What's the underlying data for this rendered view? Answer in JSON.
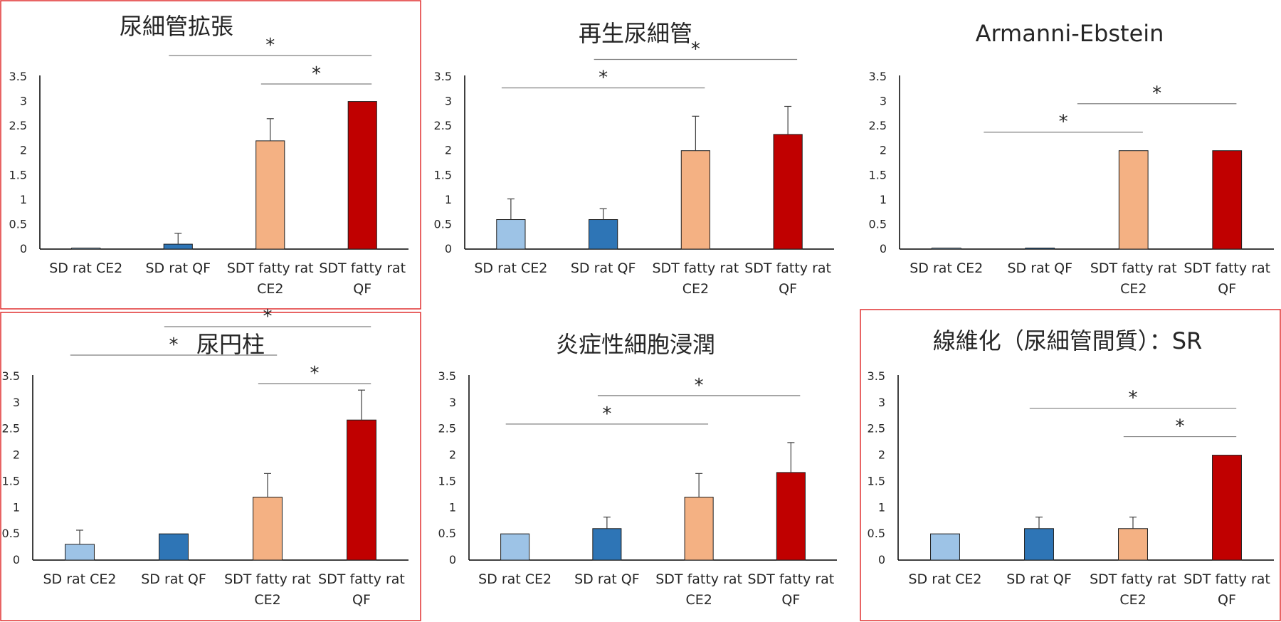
{
  "colors": {
    "sd_ce2": "#9DC3E6",
    "sd_qf": "#2E75B6",
    "sdt_ce2": "#F4B183",
    "sdt_qf": "#C00000",
    "highlight_border": "#E03030",
    "axis": "#000000",
    "error_bar": "#404040",
    "bracket": "#7F7F7F"
  },
  "categories": [
    [
      "SD rat CE2"
    ],
    [
      "SD rat QF"
    ],
    [
      "SDT fatty rat",
      "CE2"
    ],
    [
      "SDT fatty rat",
      "QF"
    ]
  ],
  "chart_data": [
    {
      "type": "bar",
      "title": "尿細管拡張",
      "highlighted": true,
      "y_ticks": [
        "0",
        "0.5",
        "1",
        "1.5",
        "2",
        "2.5",
        "3",
        "3.5"
      ],
      "ylim": [
        0,
        3.5
      ],
      "values": [
        0,
        0.1,
        2.2,
        3.0
      ],
      "errors": [
        0,
        0.22,
        0.45,
        0
      ],
      "significance": [
        {
          "from": 1,
          "to": 3,
          "label": "*"
        },
        {
          "from": 2,
          "to": 3,
          "label": "*"
        }
      ]
    },
    {
      "type": "bar",
      "title": "再生尿細管",
      "highlighted": false,
      "y_ticks": [
        "0",
        "0.5",
        "1",
        "1.5",
        "2",
        "2.5",
        "3",
        "3.5"
      ],
      "ylim": [
        0,
        3.5
      ],
      "values": [
        0.6,
        0.6,
        2.0,
        2.33
      ],
      "errors": [
        0.42,
        0.22,
        0.7,
        0.57
      ],
      "significance": [
        {
          "from": 0,
          "to": 2,
          "label": "*"
        },
        {
          "from": 1,
          "to": 3,
          "label": "*"
        }
      ]
    },
    {
      "type": "bar",
      "title": "Armanni-Ebstein",
      "highlighted": false,
      "y_ticks": [
        "0",
        "0.5",
        "1",
        "1.5",
        "2",
        "2.5",
        "3",
        "3.5"
      ],
      "ylim": [
        0,
        3.5
      ],
      "values": [
        0,
        0,
        2.0,
        2.0
      ],
      "errors": [
        0,
        0,
        0,
        0
      ],
      "significance": [
        {
          "from": 0.5,
          "to": 2,
          "label": "*"
        },
        {
          "from": 1.5,
          "to": 3,
          "label": "*"
        }
      ]
    },
    {
      "type": "bar",
      "title": "尿円柱",
      "highlighted": true,
      "y_ticks": [
        "0",
        "0.5",
        "1",
        "1.5",
        "2",
        "2.5",
        "3",
        "3.5"
      ],
      "ylim": [
        0,
        3.5
      ],
      "values": [
        0.3,
        0.5,
        1.2,
        2.67
      ],
      "errors": [
        0.27,
        0,
        0.45,
        0.57
      ],
      "significance": [
        {
          "from": 0,
          "to": 2,
          "label": "*"
        },
        {
          "from": 1,
          "to": 3,
          "label": "*"
        },
        {
          "from": 2,
          "to": 3,
          "label": "*"
        }
      ]
    },
    {
      "type": "bar",
      "title": "炎症性細胞浸潤",
      "highlighted": false,
      "y_ticks": [
        "0",
        "0.5",
        "1",
        "1.5",
        "2",
        "2.5",
        "3",
        "3.5"
      ],
      "ylim": [
        0,
        3.5
      ],
      "values": [
        0.5,
        0.6,
        1.2,
        1.67
      ],
      "errors": [
        0,
        0.22,
        0.45,
        0.57
      ],
      "significance": [
        {
          "from": 0,
          "to": 2,
          "label": "*"
        },
        {
          "from": 1,
          "to": 3,
          "label": "*"
        }
      ]
    },
    {
      "type": "bar",
      "title": "線維化（尿細管間質）：SR",
      "highlighted": true,
      "y_ticks": [
        "0",
        "0.5",
        "1",
        "1.5",
        "2",
        "2.5",
        "3",
        "3.5"
      ],
      "ylim": [
        0,
        3.5
      ],
      "values": [
        0.5,
        0.6,
        0.6,
        2.0
      ],
      "errors": [
        0,
        0.22,
        0.22,
        0
      ],
      "significance": [
        {
          "from": 1,
          "to": 3,
          "label": "*"
        },
        {
          "from": 2,
          "to": 3,
          "label": "*"
        }
      ]
    }
  ]
}
